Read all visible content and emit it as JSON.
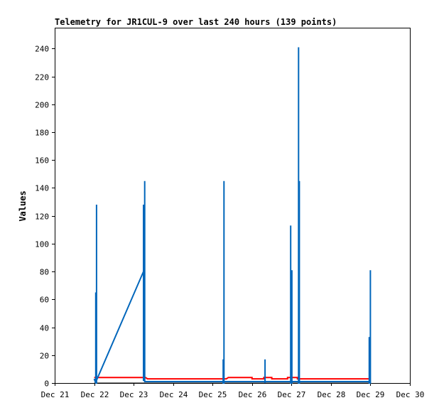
{
  "chart_data": {
    "type": "line",
    "title": "Telemetry for JR1CUL-9 over last 240 hours (139 points)",
    "xlabel": "",
    "ylabel": "Values",
    "xlim": [
      0,
      9
    ],
    "ylim": [
      0,
      255
    ],
    "x_ticks": [
      0,
      1,
      2,
      3,
      4,
      5,
      6,
      7,
      8,
      9
    ],
    "x_tick_labels": [
      "Dec 21",
      "Dec 22",
      "Dec 23",
      "Dec 24",
      "Dec 25",
      "Dec 26",
      "Dec 27",
      "Dec 28",
      "Dec 29",
      "Dec 30"
    ],
    "y_ticks": [
      0,
      20,
      40,
      60,
      80,
      100,
      120,
      140,
      160,
      180,
      200,
      220,
      240
    ],
    "grid": false,
    "legend": "none",
    "series": [
      {
        "color": "#000000",
        "width": 1,
        "points": [
          [
            1.0,
            0
          ],
          [
            8.0,
            0
          ]
        ]
      },
      {
        "color": "#ff0000",
        "width": 2,
        "points": [
          [
            1.0,
            4
          ],
          [
            2.3,
            4
          ],
          [
            2.35,
            3
          ],
          [
            4.35,
            3
          ],
          [
            4.4,
            4
          ],
          [
            5.0,
            4
          ],
          [
            5.0,
            3
          ],
          [
            5.3,
            3
          ],
          [
            5.3,
            4
          ],
          [
            5.5,
            4
          ],
          [
            5.5,
            3
          ],
          [
            5.9,
            3
          ],
          [
            5.9,
            4
          ],
          [
            6.15,
            4
          ],
          [
            6.15,
            3
          ],
          [
            8.0,
            3
          ]
        ]
      },
      {
        "color": "#0066bb",
        "width": 2,
        "points": [
          [
            1.0,
            3
          ],
          [
            1.04,
            0
          ],
          [
            1.04,
            65
          ],
          [
            1.04,
            0
          ],
          [
            1.06,
            0
          ],
          [
            1.06,
            128
          ],
          [
            1.06,
            0
          ],
          [
            1.06,
            2
          ],
          [
            2.25,
            80
          ],
          [
            2.25,
            128
          ],
          [
            2.25,
            2
          ],
          [
            2.28,
            2
          ],
          [
            2.28,
            145
          ],
          [
            2.28,
            2
          ],
          [
            2.28,
            1
          ],
          [
            4.27,
            1
          ],
          [
            4.27,
            17
          ],
          [
            4.27,
            0
          ],
          [
            4.29,
            0
          ],
          [
            4.29,
            145
          ],
          [
            4.29,
            0
          ],
          [
            4.29,
            1
          ],
          [
            5.33,
            1
          ],
          [
            5.33,
            17
          ],
          [
            5.33,
            0
          ],
          [
            5.33,
            1
          ],
          [
            5.98,
            1
          ],
          [
            5.98,
            113
          ],
          [
            5.98,
            0
          ],
          [
            6.01,
            0
          ],
          [
            6.01,
            81
          ],
          [
            6.01,
            0
          ],
          [
            6.01,
            1
          ],
          [
            6.18,
            1
          ],
          [
            6.18,
            241
          ],
          [
            6.18,
            0
          ],
          [
            6.2,
            0
          ],
          [
            6.2,
            145
          ],
          [
            6.2,
            0
          ],
          [
            6.2,
            1
          ],
          [
            7.97,
            1
          ],
          [
            7.97,
            33
          ],
          [
            7.97,
            0
          ],
          [
            8.0,
            0
          ],
          [
            8.0,
            81
          ],
          [
            8.0,
            0
          ]
        ]
      }
    ]
  }
}
